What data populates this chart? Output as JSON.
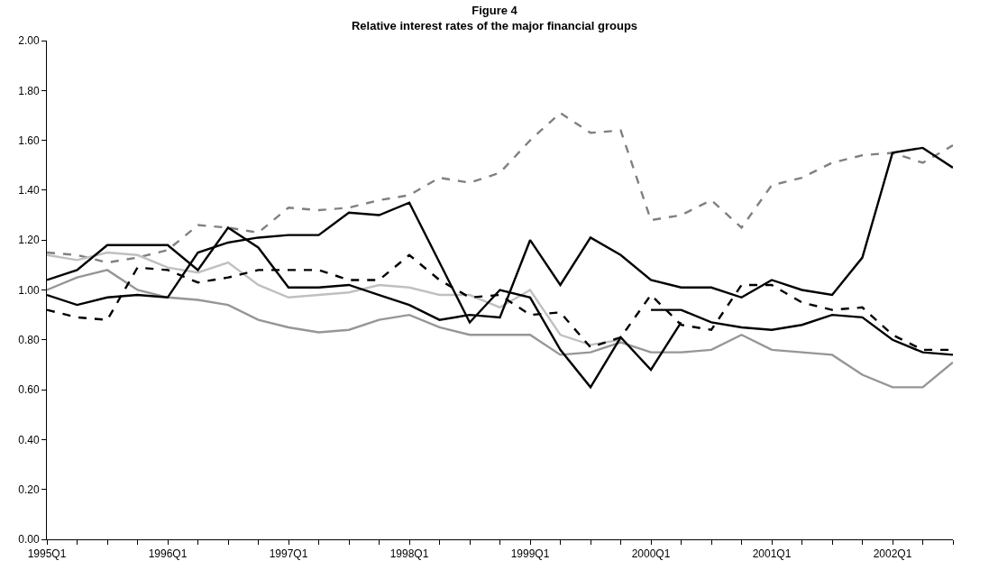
{
  "chart_data": {
    "type": "line",
    "title": "Figure 4",
    "subtitle": "Relative interest rates of the major financial groups",
    "categories": [
      "1995Q1",
      null,
      null,
      null,
      "1996Q1",
      null,
      null,
      null,
      "1997Q1",
      null,
      null,
      null,
      "1998Q1",
      null,
      null,
      null,
      "1999Q1",
      null,
      null,
      null,
      "2000Q1",
      null,
      null,
      null,
      "2001Q1",
      null,
      null,
      null,
      "2002Q1",
      null,
      null
    ],
    "ylim": [
      0,
      2
    ],
    "yticks": [
      {
        "value": 0,
        "label": "0.00"
      },
      {
        "value": 0.2,
        "label": "0.20"
      },
      {
        "value": 0.4,
        "label": "0.40"
      },
      {
        "value": 0.6,
        "label": "0.60"
      },
      {
        "value": 0.8,
        "label": "0.80"
      },
      {
        "value": 1,
        "label": "1.00"
      },
      {
        "value": 1.2,
        "label": "1.20"
      },
      {
        "value": 1.4,
        "label": "1.40"
      },
      {
        "value": 1.6,
        "label": "1.60"
      },
      {
        "value": 1.8,
        "label": "1.80"
      },
      {
        "value": 2,
        "label": "2.00"
      }
    ],
    "grid": false,
    "marker": "none",
    "series": [
      {
        "color": "#808080",
        "line_style": "dashed",
        "values": [
          1.15,
          1.14,
          1.11,
          1.13,
          1.16,
          1.26,
          1.25,
          1.23,
          1.33,
          1.32,
          1.33,
          1.36,
          1.38,
          1.45,
          1.43,
          1.47,
          1.6,
          1.71,
          1.63,
          1.64,
          1.28,
          1.3,
          1.36,
          1.25,
          1.42,
          1.45,
          1.51,
          1.54,
          1.55,
          1.51,
          1.58
        ]
      },
      {
        "color": "#c0c0c0",
        "line_style": "solid",
        "values": [
          1.14,
          1.12,
          1.15,
          1.14,
          1.09,
          1.07,
          1.11,
          1.02,
          0.97,
          0.98,
          0.99,
          1.02,
          1.01,
          0.98,
          0.98,
          0.93,
          1.0,
          0.82,
          0.78,
          0.8,
          null,
          null,
          null,
          null,
          null,
          null,
          null,
          null,
          null,
          null,
          null
        ]
      },
      {
        "color": "#969696",
        "line_style": "solid",
        "values": [
          1.0,
          1.05,
          1.08,
          1.0,
          0.97,
          0.96,
          0.94,
          0.88,
          0.85,
          0.83,
          0.84,
          0.88,
          0.9,
          0.85,
          0.82,
          0.82,
          0.82,
          0.74,
          0.75,
          0.79,
          0.75,
          0.75,
          0.76,
          0.82,
          0.76,
          0.75,
          0.74,
          0.66,
          0.61,
          0.61,
          0.71
        ]
      },
      {
        "color": "#000000",
        "line_style": "dashed",
        "values": [
          0.92,
          0.89,
          0.88,
          1.09,
          1.08,
          1.03,
          1.05,
          1.08,
          1.08,
          1.08,
          1.04,
          1.04,
          1.14,
          1.04,
          0.97,
          0.98,
          0.9,
          0.91,
          0.77,
          0.81,
          0.98,
          0.86,
          0.84,
          1.02,
          1.02,
          0.95,
          0.92,
          0.93,
          0.82,
          0.76,
          0.76
        ]
      },
      {
        "color": "#000000",
        "line_style": "solid",
        "values": [
          1.04,
          1.08,
          1.18,
          1.18,
          1.18,
          1.08,
          1.25,
          1.17,
          1.01,
          1.01,
          1.02,
          0.98,
          0.94,
          0.88,
          0.9,
          0.89,
          1.2,
          1.02,
          1.21,
          1.14,
          1.04,
          1.01,
          1.01,
          0.97,
          1.04,
          1.0,
          0.98,
          1.13,
          1.55,
          1.57,
          1.49
        ]
      },
      {
        "color": "#000000",
        "line_style": "solid",
        "values": [
          0.98,
          0.94,
          0.97,
          0.98,
          0.97,
          1.15,
          1.19,
          1.21,
          1.22,
          1.22,
          1.31,
          1.3,
          1.35,
          1.11,
          0.87,
          1.0,
          0.97,
          0.76,
          0.61,
          0.81,
          0.68,
          0.87,
          null,
          null,
          null,
          null,
          null,
          null,
          null,
          null,
          null
        ]
      },
      {
        "color": "#000000",
        "line_style": "solid",
        "values": [
          null,
          null,
          null,
          null,
          null,
          null,
          null,
          null,
          null,
          null,
          null,
          null,
          null,
          null,
          null,
          null,
          null,
          null,
          null,
          null,
          0.92,
          0.92,
          0.87,
          0.85,
          0.84,
          0.86,
          0.9,
          0.89,
          0.8,
          0.75,
          0.74
        ]
      }
    ]
  }
}
